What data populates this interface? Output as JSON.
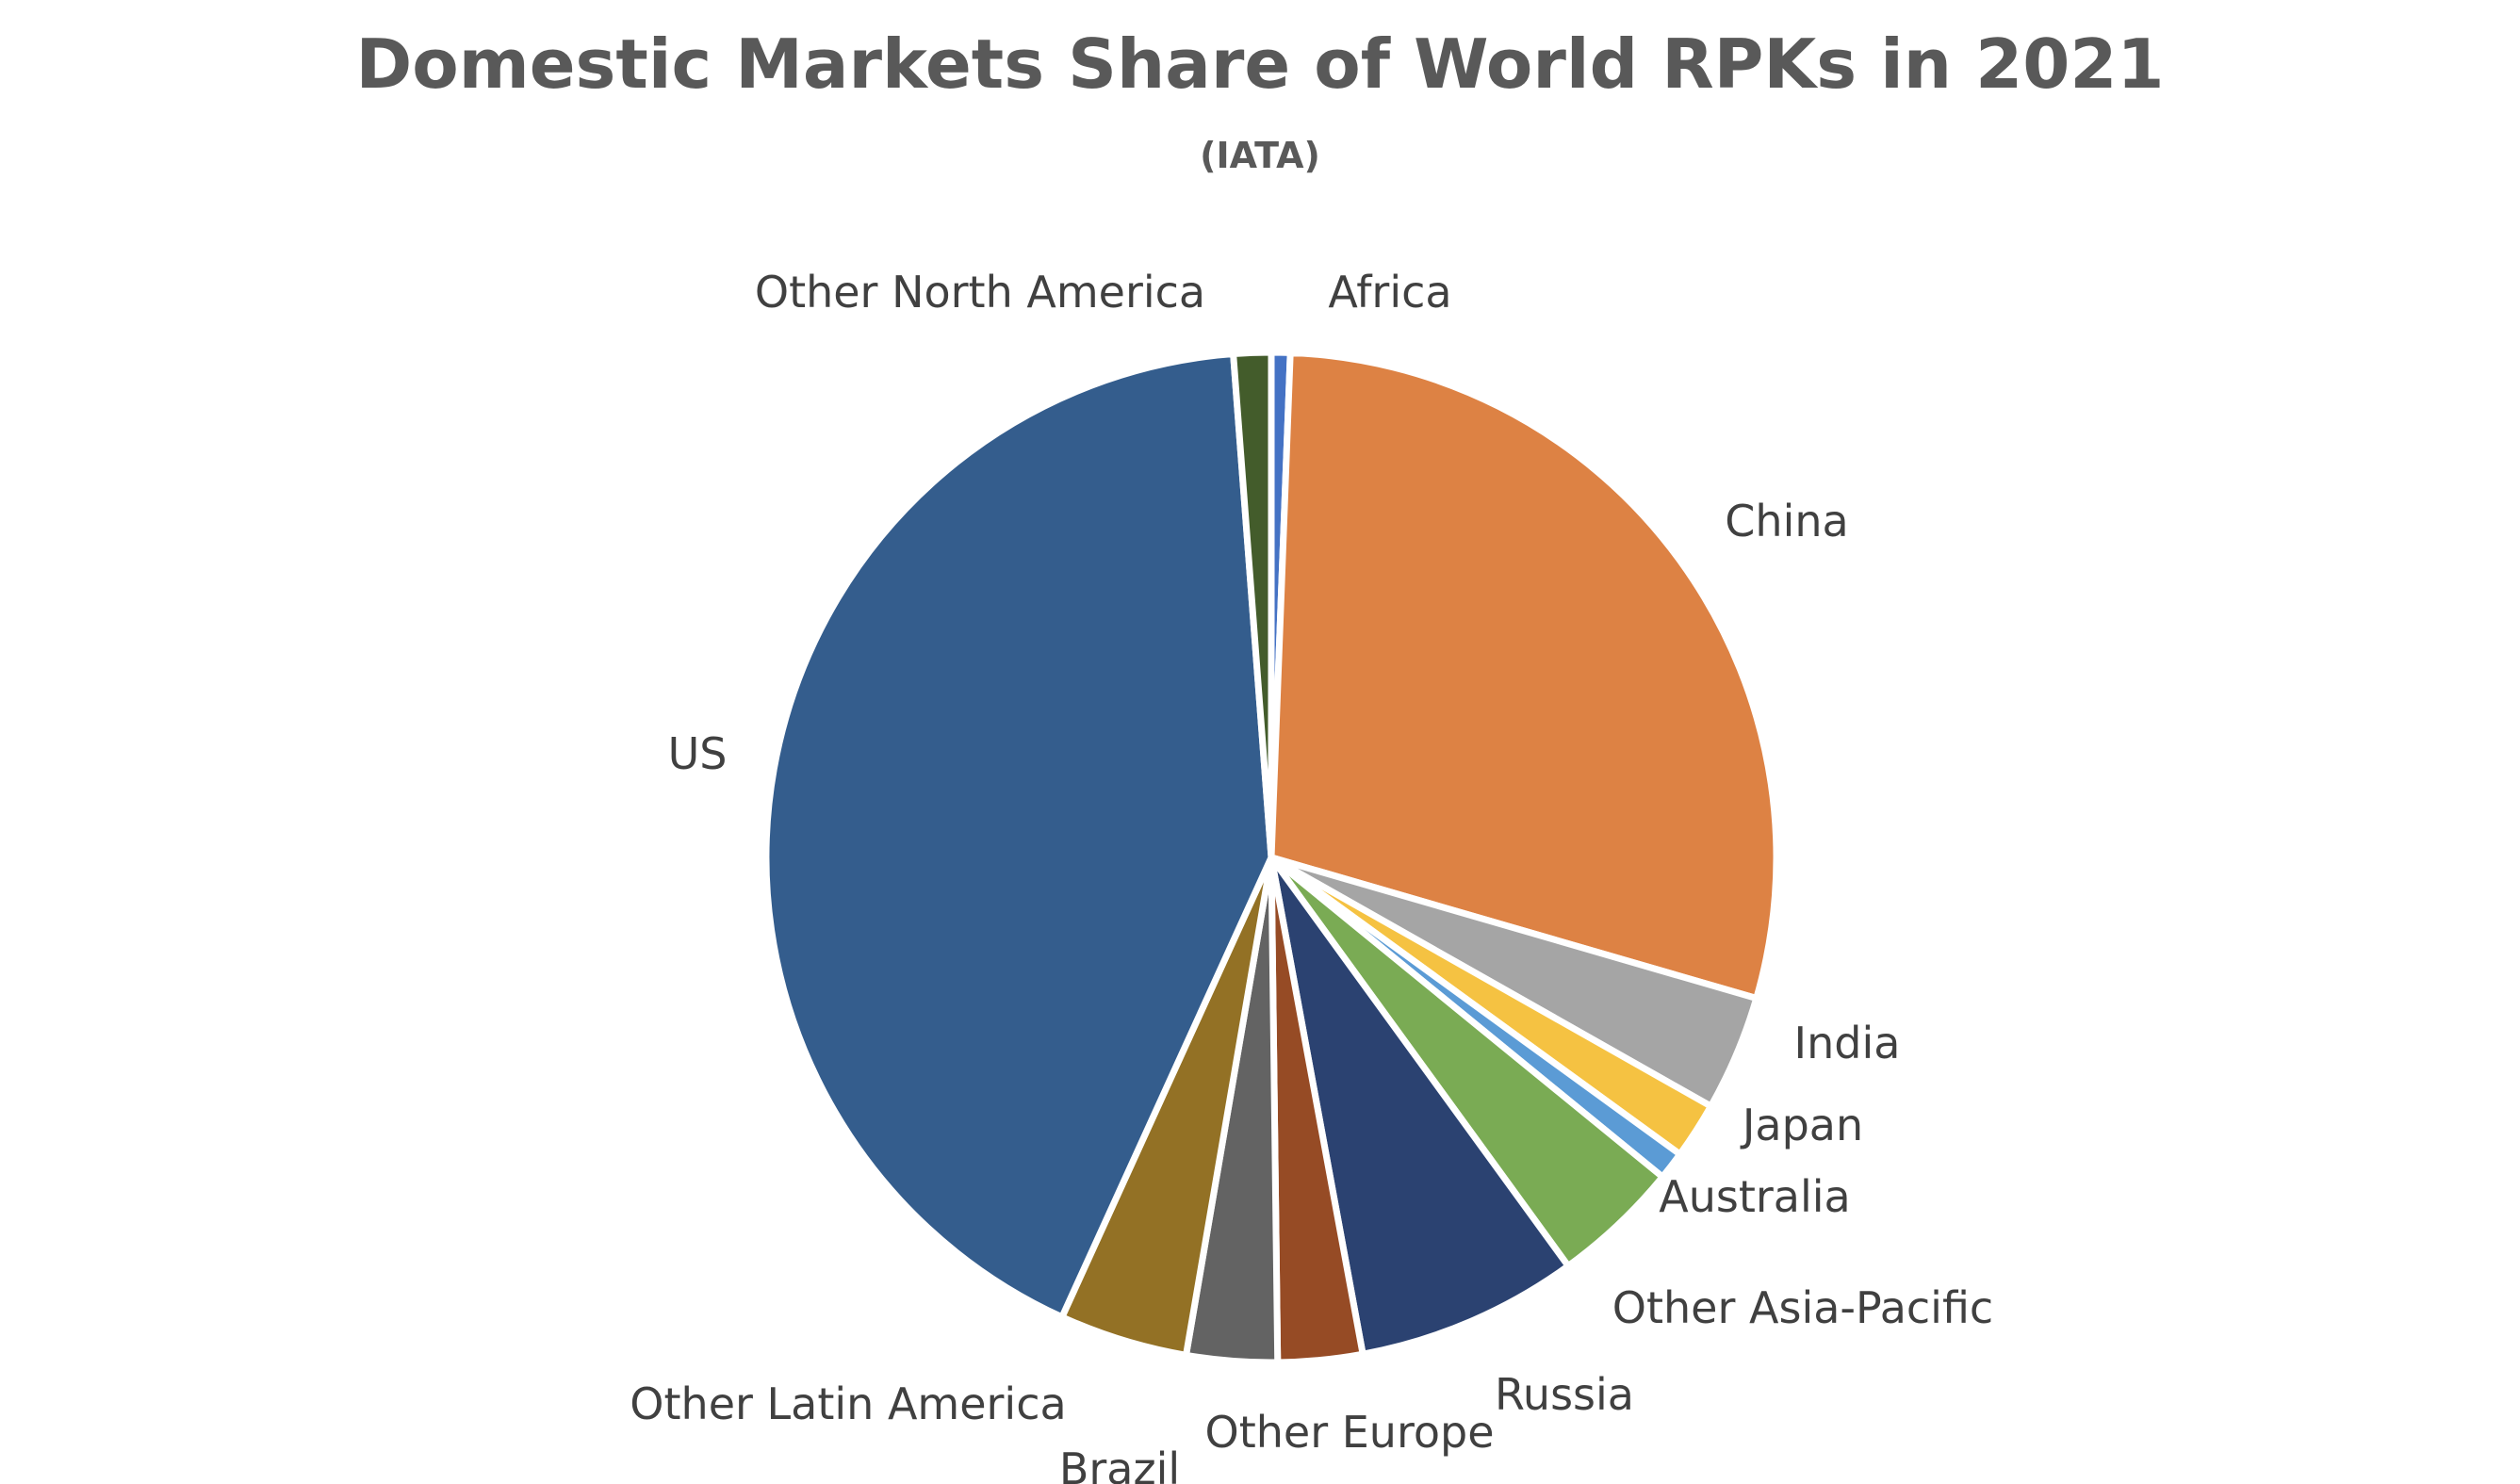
{
  "chart_data": {
    "type": "pie",
    "title": "Domestic Markets Share of World RPKs in 2021",
    "subtitle": "(IATA)",
    "start_angle_deg": 0,
    "direction": "clockwise",
    "slices": [
      {
        "label": "Africa",
        "value": 0.6,
        "color": "#4472C4"
      },
      {
        "label": "China",
        "value": 28.9,
        "color": "#DD8244"
      },
      {
        "label": "India",
        "value": 3.7,
        "color": "#A5A5A5"
      },
      {
        "label": "Japan",
        "value": 1.8,
        "color": "#F5C242"
      },
      {
        "label": "Australia",
        "value": 0.9,
        "color": "#5B9BD5"
      },
      {
        "label": "Other Asia-Pacific",
        "value": 4.1,
        "color": "#7AAB54"
      },
      {
        "label": "Russia",
        "value": 7.1,
        "color": "#2B4271"
      },
      {
        "label": "Other Europe",
        "value": 2.7,
        "color": "#964B25"
      },
      {
        "label": "Brazil",
        "value": 2.9,
        "color": "#636363"
      },
      {
        "label": "Other Latin America",
        "value": 4.1,
        "color": "#937125"
      },
      {
        "label": "US",
        "value": 42.0,
        "color": "#345D8D"
      },
      {
        "label": "Other North America",
        "value": 1.2,
        "color": "#435C2B"
      }
    ],
    "legend": "none",
    "data_labels": "category-name-outside"
  }
}
